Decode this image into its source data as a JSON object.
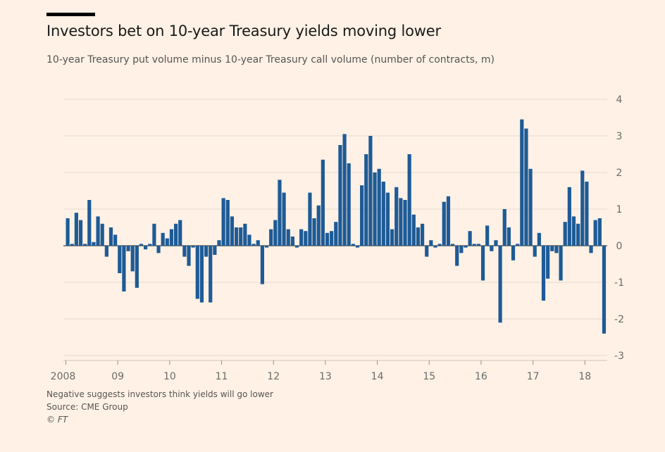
{
  "title": "Investors bet on 10-year Treasury yields moving lower",
  "subtitle": "10-year Treasury put volume minus 10-year Treasury call volume (number of contracts, m)",
  "footer": {
    "note": "Negative suggests investors think yields will go lower",
    "source": "Source: CME Group",
    "copyright": "© FT"
  },
  "colors": {
    "bar": "#1e5b96",
    "background": "#fff1e5",
    "grid": "#e6dcd1"
  },
  "chart_data": {
    "type": "bar",
    "ylim": [
      -3,
      4
    ],
    "yticks": [
      4,
      3,
      2,
      1,
      0,
      -1,
      -2,
      -3
    ],
    "xticks": [
      "2008",
      "09",
      "10",
      "11",
      "12",
      "13",
      "14",
      "15",
      "16",
      "17",
      "18"
    ],
    "grid": true,
    "start": "2008-01",
    "frequency": "monthly",
    "values": [
      0.75,
      0.05,
      0.9,
      0.7,
      0.05,
      1.25,
      0.1,
      0.8,
      0.6,
      -0.3,
      0.5,
      0.3,
      -0.75,
      -1.25,
      -0.15,
      -0.7,
      -1.15,
      0.05,
      -0.1,
      0.05,
      0.6,
      -0.2,
      0.35,
      0.2,
      0.45,
      0.6,
      0.7,
      -0.3,
      -0.55,
      -0.05,
      -1.45,
      -1.55,
      -0.3,
      -1.55,
      -0.25,
      0.15,
      1.3,
      1.25,
      0.8,
      0.5,
      0.5,
      0.6,
      0.3,
      0.05,
      0.15,
      -1.05,
      -0.05,
      0.45,
      0.7,
      1.8,
      1.45,
      0.45,
      0.25,
      -0.05,
      0.45,
      0.4,
      1.45,
      0.75,
      1.1,
      2.35,
      0.35,
      0.4,
      0.65,
      2.75,
      3.05,
      2.25,
      0.05,
      -0.05,
      1.65,
      2.5,
      3.0,
      2.0,
      2.1,
      1.75,
      1.45,
      0.45,
      1.6,
      1.3,
      1.25,
      2.5,
      0.85,
      0.5,
      0.6,
      -0.3,
      0.15,
      -0.05,
      0.05,
      1.2,
      1.35,
      0.05,
      -0.55,
      -0.2,
      -0.05,
      0.4,
      0.05,
      0.05,
      -0.95,
      0.55,
      -0.15,
      0.15,
      -2.1,
      1.0,
      0.5,
      -0.4,
      0.05,
      3.45,
      3.2,
      2.1,
      -0.3,
      0.35,
      -1.5,
      -0.9,
      -0.15,
      -0.2,
      -0.95,
      0.65,
      1.6,
      0.8,
      0.6,
      2.05,
      1.75,
      -0.2,
      0.7,
      0.75,
      -2.4
    ]
  }
}
